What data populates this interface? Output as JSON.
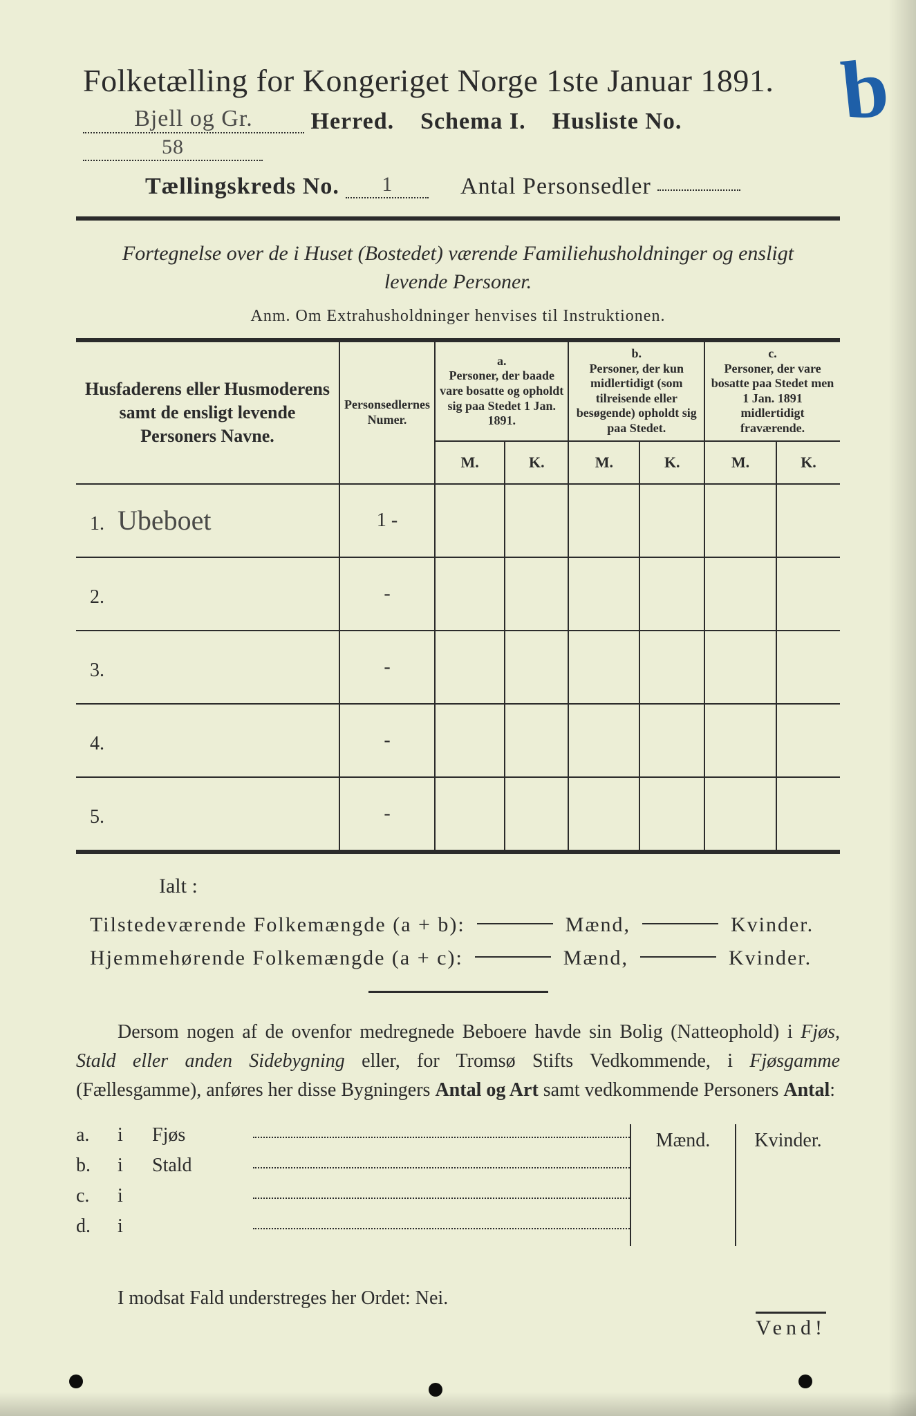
{
  "header": {
    "title": "Folketælling for Kongeriget Norge 1ste Januar 1891.",
    "herred_value": "Bjell og Gr.",
    "herred_label": "Herred.",
    "schema_label": "Schema I.",
    "husliste_label": "Husliste No.",
    "husliste_value": "58",
    "kreds_label": "Tællingskreds No.",
    "kreds_value": "1",
    "antal_label": "Antal Personsedler",
    "antal_value": "",
    "corner_mark": "b"
  },
  "subtitle": {
    "line1": "Fortegnelse over de i Huset (Bostedet) værende Familiehusholdninger og ensligt",
    "line2": "levende Personer.",
    "anm": "Anm. Om Extrahusholdninger henvises til Instruktionen."
  },
  "table": {
    "col_names": "Husfaderens eller Husmoderens samt de ensligt levende Personers Navne.",
    "col_numer": "Personsedlernes Numer.",
    "col_a_head": "a.",
    "col_a": "Personer, der baade vare bosatte og opholdt sig paa Stedet 1 Jan. 1891.",
    "col_b_head": "b.",
    "col_b": "Personer, der kun midlertidigt (som tilreisende eller besøgende) opholdt sig paa Stedet.",
    "col_c_head": "c.",
    "col_c": "Personer, der vare bosatte paa Stedet men 1 Jan. 1891 midlertidigt fraværende.",
    "m": "M.",
    "k": "K.",
    "rows": [
      {
        "n": "1.",
        "name": "Ubeboet",
        "num": "1 -"
      },
      {
        "n": "2.",
        "name": "",
        "num": "-"
      },
      {
        "n": "3.",
        "name": "",
        "num": "-"
      },
      {
        "n": "4.",
        "name": "",
        "num": "-"
      },
      {
        "n": "5.",
        "name": "",
        "num": "-"
      }
    ]
  },
  "sums": {
    "ialt": "Ialt :",
    "line1_label": "Tilstedeværende Folkemængde (a + b):",
    "line2_label": "Hjemmehørende Folkemængde (a + c):",
    "maend": "Mænd,",
    "kvinder": "Kvinder."
  },
  "para": {
    "t1": "Dersom nogen af de ovenfor medregnede Beboere havde sin Bolig (Natte­ophold) i ",
    "i1": "Fjøs, Stald eller anden Sidebygning",
    "t2": " eller, for Tromsø Stifts Ved­kommende, i ",
    "i2": "Fjøsgamme",
    "t3": " (Fællesgamme), anføres her disse Bygningers ",
    "b1": "Antal og Art",
    "t4": " samt vedkommende Personers ",
    "b2": "Antal",
    "t5": ":"
  },
  "lower": {
    "maend": "Mænd.",
    "kvinder": "Kvinder.",
    "rows": [
      {
        "a": "a.",
        "i": "i",
        "w": "Fjøs"
      },
      {
        "a": "b.",
        "i": "i",
        "w": "Stald"
      },
      {
        "a": "c.",
        "i": "i",
        "w": ""
      },
      {
        "a": "d.",
        "i": "i",
        "w": ""
      }
    ]
  },
  "nei": "I modsat Fald understreges her Ordet: Nei.",
  "vend": "Vend!"
}
